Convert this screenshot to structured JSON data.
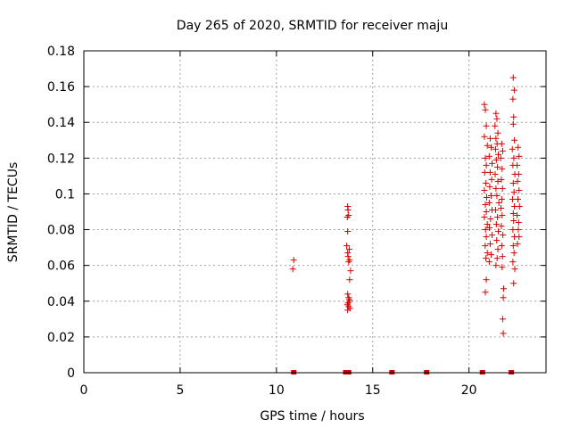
{
  "chart_data": {
    "type": "scatter",
    "title": "Day 265 of 2020, SRMTID for receiver maju",
    "xlabel": "GPS time / hours",
    "ylabel": "SRMTID / TECUs",
    "xlim": [
      0,
      24
    ],
    "ylim": [
      0,
      0.18
    ],
    "xticks": [
      0,
      5,
      10,
      15,
      20
    ],
    "yticks": [
      0,
      0.02,
      0.04,
      0.06,
      0.08,
      0.1,
      0.12,
      0.14,
      0.16,
      0.18
    ],
    "xtick_labels": [
      "0",
      "5",
      "10",
      "15",
      "20"
    ],
    "ytick_labels": [
      "0",
      "0.02",
      "0.04",
      "0.06",
      "0.08",
      "0.1",
      "0.12",
      "0.14",
      "0.16",
      "0.18"
    ],
    "grid": true,
    "marker": "+",
    "color": "#d40000",
    "series": [
      {
        "points": [
          [
            10.9,
            0.063
          ],
          [
            10.85,
            0.058
          ],
          [
            13.7,
            0.093
          ],
          [
            13.72,
            0.091
          ],
          [
            13.68,
            0.087
          ],
          [
            13.75,
            0.088
          ],
          [
            13.7,
            0.079
          ],
          [
            13.65,
            0.071
          ],
          [
            13.78,
            0.069
          ],
          [
            13.7,
            0.067
          ],
          [
            13.72,
            0.065
          ],
          [
            13.8,
            0.063
          ],
          [
            13.75,
            0.062
          ],
          [
            13.85,
            0.057
          ],
          [
            13.8,
            0.052
          ],
          [
            13.7,
            0.044
          ],
          [
            13.75,
            0.042
          ],
          [
            13.78,
            0.041
          ],
          [
            13.8,
            0.04
          ],
          [
            13.72,
            0.039
          ],
          [
            13.68,
            0.038
          ],
          [
            13.75,
            0.037
          ],
          [
            13.82,
            0.036
          ],
          [
            13.7,
            0.035
          ],
          [
            20.8,
            0.15
          ],
          [
            20.85,
            0.147
          ],
          [
            20.9,
            0.138
          ],
          [
            20.8,
            0.132
          ],
          [
            20.95,
            0.127
          ],
          [
            20.85,
            0.12
          ],
          [
            20.9,
            0.116
          ],
          [
            20.82,
            0.112
          ],
          [
            20.88,
            0.106
          ],
          [
            20.8,
            0.102
          ],
          [
            20.92,
            0.098
          ],
          [
            20.85,
            0.094
          ],
          [
            20.9,
            0.09
          ],
          [
            20.8,
            0.087
          ],
          [
            20.95,
            0.083
          ],
          [
            20.86,
            0.08
          ],
          [
            20.9,
            0.076
          ],
          [
            20.84,
            0.071
          ],
          [
            20.95,
            0.067
          ],
          [
            20.88,
            0.064
          ],
          [
            20.9,
            0.052
          ],
          [
            20.85,
            0.045
          ],
          [
            21.1,
            0.131
          ],
          [
            21.15,
            0.126
          ],
          [
            21.05,
            0.121
          ],
          [
            21.2,
            0.117
          ],
          [
            21.1,
            0.112
          ],
          [
            21.18,
            0.108
          ],
          [
            21.08,
            0.104
          ],
          [
            21.15,
            0.099
          ],
          [
            21.05,
            0.095
          ],
          [
            21.2,
            0.091
          ],
          [
            21.12,
            0.086
          ],
          [
            21.06,
            0.081
          ],
          [
            21.2,
            0.077
          ],
          [
            21.1,
            0.072
          ],
          [
            21.15,
            0.066
          ],
          [
            21.05,
            0.062
          ],
          [
            21.4,
            0.145
          ],
          [
            21.45,
            0.142
          ],
          [
            21.35,
            0.138
          ],
          [
            21.5,
            0.134
          ],
          [
            21.4,
            0.131
          ],
          [
            21.46,
            0.128
          ],
          [
            21.38,
            0.125
          ],
          [
            21.52,
            0.122
          ],
          [
            21.42,
            0.119
          ],
          [
            21.48,
            0.115
          ],
          [
            21.36,
            0.111
          ],
          [
            21.5,
            0.107
          ],
          [
            21.4,
            0.103
          ],
          [
            21.45,
            0.099
          ],
          [
            21.55,
            0.095
          ],
          [
            21.38,
            0.091
          ],
          [
            21.48,
            0.087
          ],
          [
            21.42,
            0.083
          ],
          [
            21.52,
            0.079
          ],
          [
            21.44,
            0.074
          ],
          [
            21.5,
            0.069
          ],
          [
            21.46,
            0.064
          ],
          [
            21.4,
            0.06
          ],
          [
            21.7,
            0.128
          ],
          [
            21.75,
            0.124
          ],
          [
            21.65,
            0.12
          ],
          [
            21.72,
            0.114
          ],
          [
            21.68,
            0.108
          ],
          [
            21.74,
            0.103
          ],
          [
            21.7,
            0.097
          ],
          [
            21.66,
            0.092
          ],
          [
            21.72,
            0.088
          ],
          [
            21.68,
            0.082
          ],
          [
            21.76,
            0.077
          ],
          [
            21.7,
            0.071
          ],
          [
            21.74,
            0.065
          ],
          [
            21.72,
            0.059
          ],
          [
            21.8,
            0.047
          ],
          [
            21.78,
            0.042
          ],
          [
            21.75,
            0.03
          ],
          [
            21.78,
            0.022
          ],
          [
            22.3,
            0.165
          ],
          [
            22.35,
            0.158
          ],
          [
            22.28,
            0.153
          ],
          [
            22.32,
            0.143
          ],
          [
            22.3,
            0.139
          ],
          [
            22.36,
            0.13
          ],
          [
            22.25,
            0.125
          ],
          [
            22.33,
            0.12
          ],
          [
            22.28,
            0.116
          ],
          [
            22.38,
            0.111
          ],
          [
            22.3,
            0.106
          ],
          [
            22.34,
            0.101
          ],
          [
            22.26,
            0.097
          ],
          [
            22.36,
            0.093
          ],
          [
            22.3,
            0.089
          ],
          [
            22.32,
            0.085
          ],
          [
            22.28,
            0.08
          ],
          [
            22.36,
            0.076
          ],
          [
            22.3,
            0.071
          ],
          [
            22.34,
            0.067
          ],
          [
            22.28,
            0.062
          ],
          [
            22.38,
            0.058
          ],
          [
            22.32,
            0.05
          ],
          [
            22.55,
            0.126
          ],
          [
            22.6,
            0.121
          ],
          [
            22.5,
            0.116
          ],
          [
            22.58,
            0.111
          ],
          [
            22.52,
            0.107
          ],
          [
            22.6,
            0.102
          ],
          [
            22.54,
            0.097
          ],
          [
            22.62,
            0.093
          ],
          [
            22.5,
            0.088
          ],
          [
            22.58,
            0.084
          ],
          [
            22.56,
            0.08
          ],
          [
            22.6,
            0.076
          ],
          [
            22.52,
            0.072
          ]
        ]
      }
    ],
    "zero_markers_x": [
      10.9,
      13.6,
      13.75,
      16.0,
      17.8,
      20.7,
      22.2
    ]
  }
}
